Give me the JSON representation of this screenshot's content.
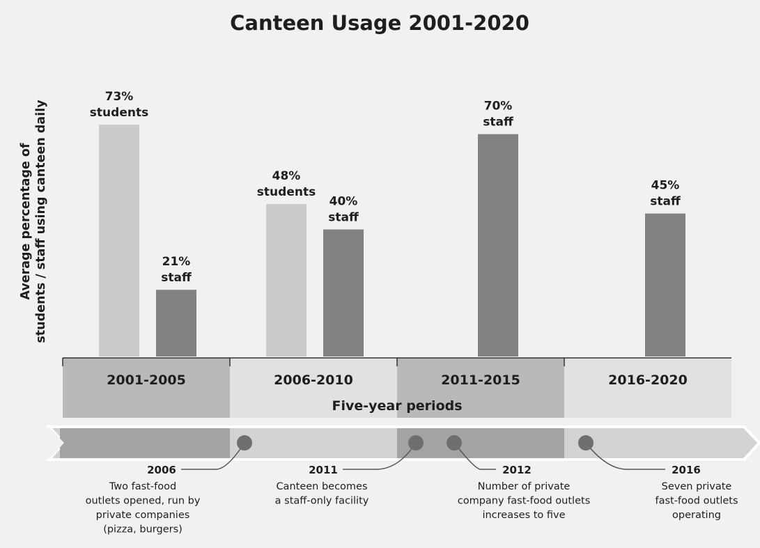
{
  "chart_data": {
    "type": "bar",
    "title": "Canteen Usage 2001-2020",
    "ylabel": [
      "Average percentage of",
      "students / staff using canteen daily"
    ],
    "xlabel": "Five-year periods",
    "ylim": [
      0,
      80
    ],
    "categories": [
      "2001-2005",
      "2006-2010",
      "2011-2015",
      "2016-2020"
    ],
    "series": [
      {
        "name": "students",
        "values": [
          73,
          48,
          null,
          null
        ]
      },
      {
        "name": "staff",
        "values": [
          21,
          40,
          70,
          45
        ]
      }
    ],
    "data_labels": [
      {
        "value": "73%",
        "group": "students"
      },
      {
        "value": "21%",
        "group": "staff"
      },
      {
        "value": "48%",
        "group": "students"
      },
      {
        "value": "40%",
        "group": "staff"
      },
      {
        "value": "70%",
        "group": "staff"
      },
      {
        "value": "45%",
        "group": "staff"
      }
    ],
    "timeline_events": [
      {
        "year": "2006",
        "lines": [
          "Two fast-food",
          "outlets opened, run by",
          "private companies",
          "(pizza, burgers)"
        ]
      },
      {
        "year": "2011",
        "lines": [
          "Canteen becomes",
          "a staff-only facility"
        ]
      },
      {
        "year": "2012",
        "lines": [
          "Number of private",
          "company fast-food outlets",
          "increases to five"
        ]
      },
      {
        "year": "2016",
        "lines": [
          "Seven private",
          "fast-food outlets",
          "operating"
        ]
      }
    ],
    "colors": {
      "students": "#cbcbcb",
      "staff": "#828282",
      "period_dark": "#b9b9b9",
      "period_light": "#e1e1e1",
      "arrow_dark": "#a3a3a3",
      "arrow_light": "#d2d2d2",
      "dot": "#6f6f6f"
    }
  }
}
